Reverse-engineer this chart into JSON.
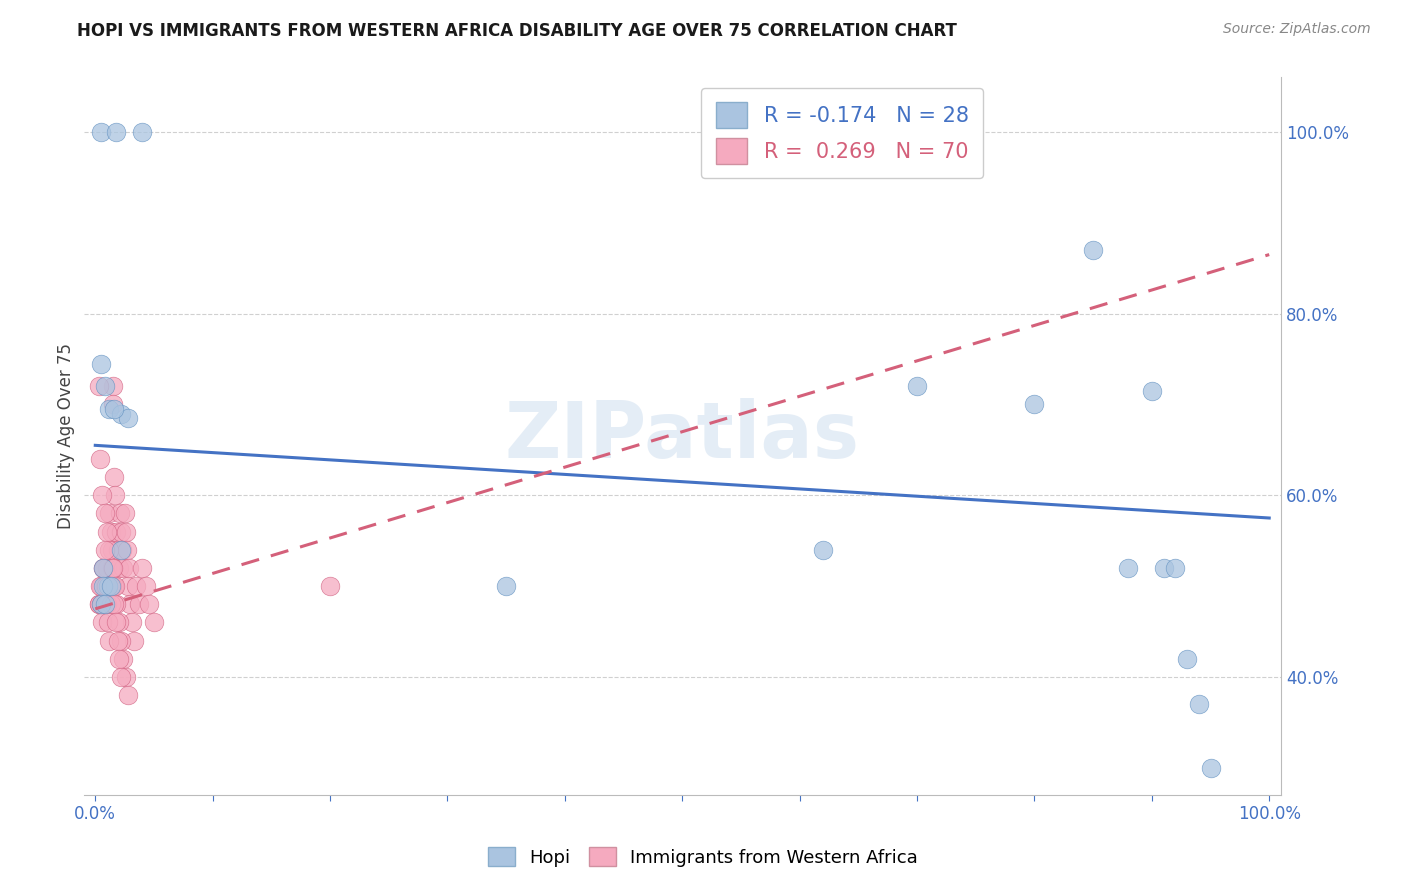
{
  "title": "HOPI VS IMMIGRANTS FROM WESTERN AFRICA DISABILITY AGE OVER 75 CORRELATION CHART",
  "source": "Source: ZipAtlas.com",
  "ylabel": "Disability Age Over 75",
  "hopi_R": -0.174,
  "hopi_N": 28,
  "immigrants_R": 0.269,
  "immigrants_N": 70,
  "hopi_color": "#aac4e0",
  "immigrants_color": "#f5aabf",
  "hopi_line_color": "#4472c4",
  "immigrants_line_color": "#d4607a",
  "watermark": "ZIPatlas",
  "xlim": [
    -0.01,
    1.01
  ],
  "ylim": [
    0.27,
    1.06
  ],
  "yticks": [
    0.4,
    0.6,
    0.8,
    1.0
  ],
  "ytick_labels": [
    "40.0%",
    "60.0%",
    "80.0%",
    "100.0%"
  ],
  "xticks": [
    0.0,
    0.1,
    0.2,
    0.3,
    0.4,
    0.5,
    0.6,
    0.7,
    0.8,
    0.9,
    1.0
  ],
  "xtick_labels": [
    "0.0%",
    "",
    "",
    "",
    "",
    "",
    "",
    "",
    "",
    "",
    "100.0%"
  ],
  "hopi_x": [
    0.005,
    0.018,
    0.04,
    0.005,
    0.008,
    0.012,
    0.022,
    0.028,
    0.007,
    0.011,
    0.016,
    0.007,
    0.013,
    0.022,
    0.005,
    0.008,
    0.35,
    0.62,
    0.7,
    0.8,
    0.85,
    0.88,
    0.9,
    0.91,
    0.92,
    0.93,
    0.94,
    0.95
  ],
  "hopi_y": [
    1.0,
    1.0,
    1.0,
    0.745,
    0.72,
    0.695,
    0.69,
    0.685,
    0.52,
    0.5,
    0.695,
    0.5,
    0.5,
    0.54,
    0.48,
    0.48,
    0.5,
    0.54,
    0.72,
    0.7,
    0.87,
    0.52,
    0.715,
    0.52,
    0.52,
    0.42,
    0.37,
    0.3
  ],
  "immigrants_x": [
    0.003,
    0.005,
    0.006,
    0.007,
    0.008,
    0.009,
    0.01,
    0.011,
    0.012,
    0.013,
    0.014,
    0.015,
    0.015,
    0.016,
    0.017,
    0.018,
    0.019,
    0.02,
    0.021,
    0.022,
    0.023,
    0.024,
    0.025,
    0.026,
    0.027,
    0.028,
    0.029,
    0.03,
    0.031,
    0.033,
    0.035,
    0.037,
    0.04,
    0.043,
    0.046,
    0.05,
    0.003,
    0.004,
    0.006,
    0.008,
    0.01,
    0.012,
    0.014,
    0.016,
    0.018,
    0.02,
    0.022,
    0.024,
    0.026,
    0.028,
    0.003,
    0.004,
    0.005,
    0.006,
    0.007,
    0.008,
    0.009,
    0.01,
    0.011,
    0.012,
    0.013,
    0.014,
    0.015,
    0.016,
    0.017,
    0.018,
    0.019,
    0.02,
    0.022,
    0.2
  ],
  "immigrants_y": [
    0.48,
    0.5,
    0.48,
    0.52,
    0.5,
    0.48,
    0.52,
    0.5,
    0.58,
    0.56,
    0.54,
    0.72,
    0.7,
    0.62,
    0.6,
    0.56,
    0.54,
    0.52,
    0.58,
    0.56,
    0.54,
    0.52,
    0.58,
    0.56,
    0.54,
    0.5,
    0.52,
    0.48,
    0.46,
    0.44,
    0.5,
    0.48,
    0.52,
    0.5,
    0.48,
    0.46,
    0.72,
    0.64,
    0.6,
    0.58,
    0.56,
    0.54,
    0.52,
    0.5,
    0.48,
    0.46,
    0.44,
    0.42,
    0.4,
    0.38,
    0.48,
    0.5,
    0.48,
    0.46,
    0.52,
    0.54,
    0.5,
    0.48,
    0.46,
    0.44,
    0.48,
    0.5,
    0.52,
    0.48,
    0.5,
    0.46,
    0.44,
    0.42,
    0.4,
    0.5
  ],
  "hopi_line_x0": 0.0,
  "hopi_line_x1": 1.0,
  "hopi_line_y0": 0.655,
  "hopi_line_y1": 0.575,
  "imm_line_x0": 0.0,
  "imm_line_x1": 1.0,
  "imm_line_y0": 0.475,
  "imm_line_y1": 0.865
}
